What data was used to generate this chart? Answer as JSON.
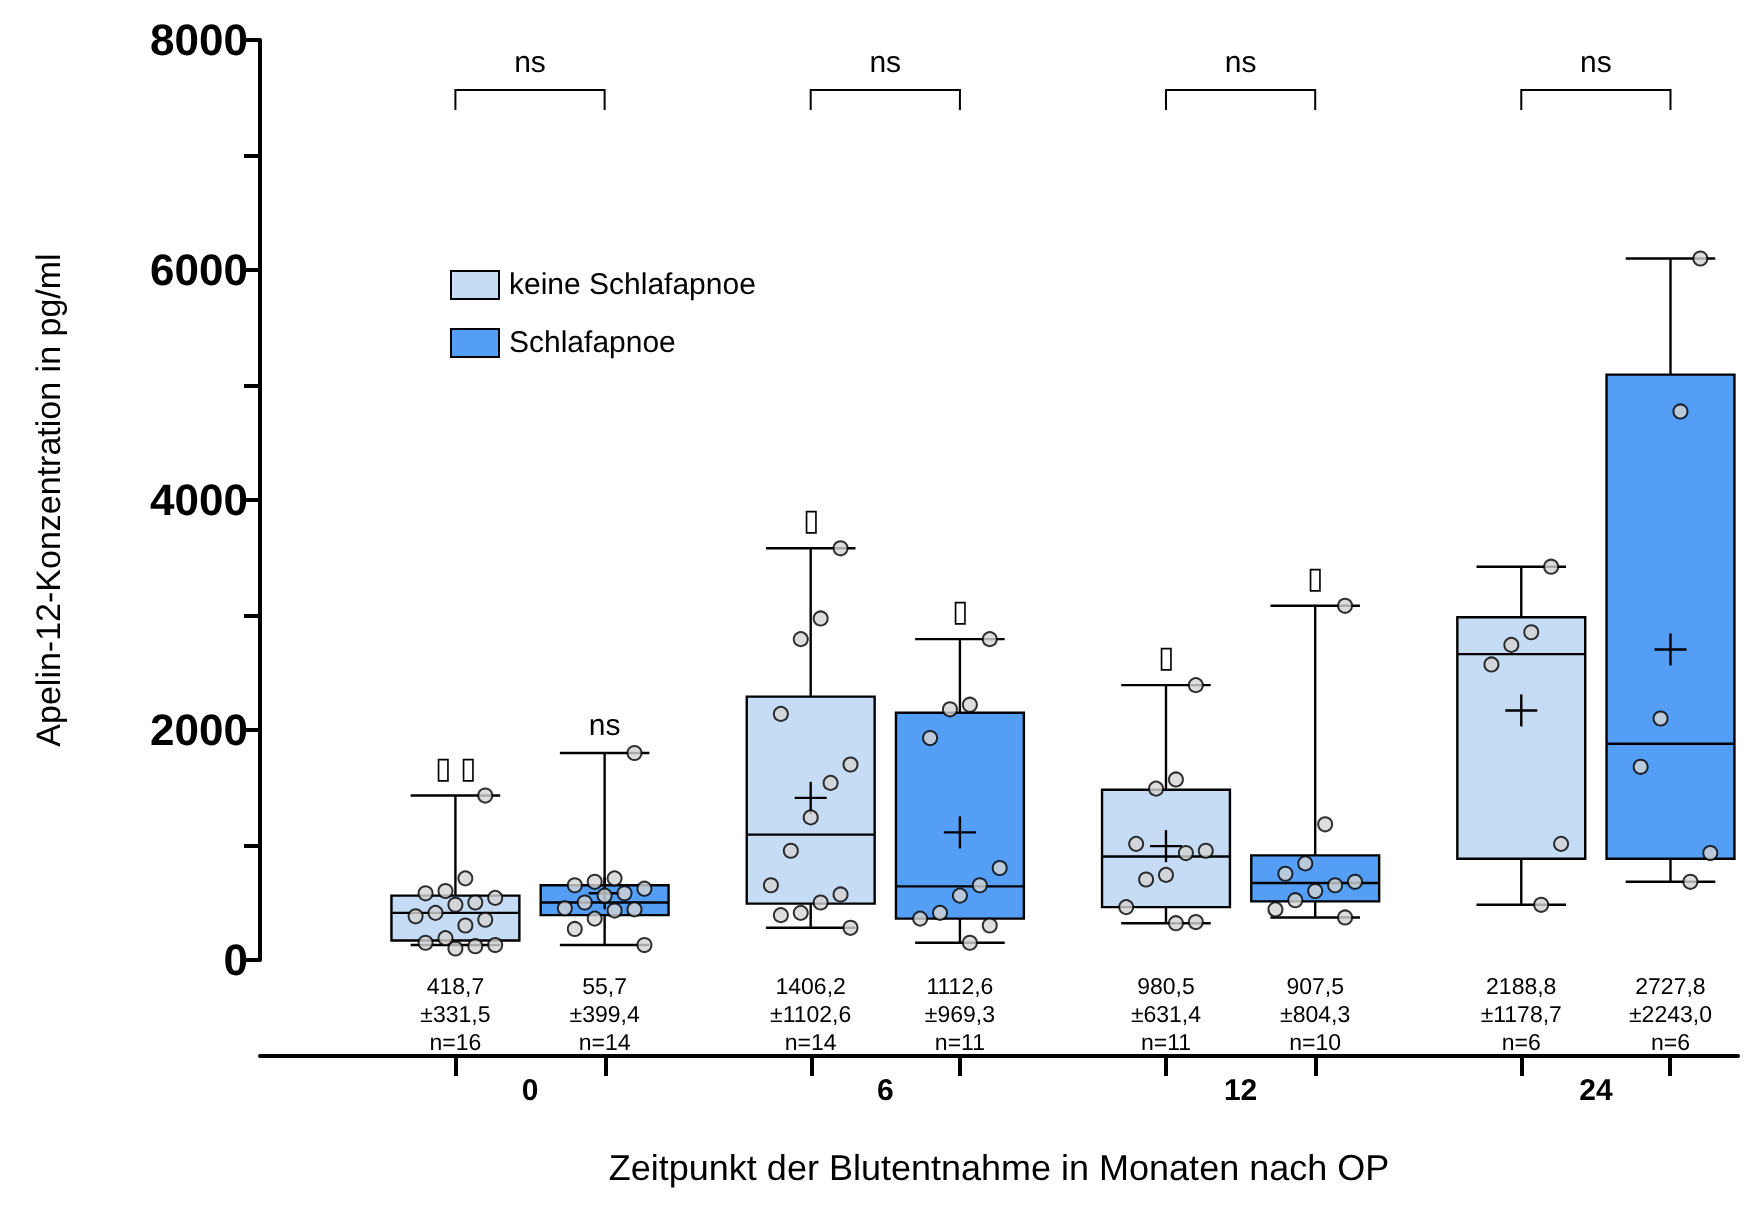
{
  "chart_data": {
    "type": "box",
    "xlabel": "Zeitpunkt der Blutentnahme in Monaten nach OP",
    "ylabel": "Apelin-12-Konzentration in pg/ml",
    "categories": [
      "0",
      "6",
      "12",
      "24"
    ],
    "ylim": [
      0,
      8000
    ],
    "yticks": [
      0,
      2000,
      4000,
      6000,
      8000
    ],
    "grid": false,
    "legend": "top left",
    "series": [
      {
        "name": "keine Schlafapnoe",
        "color": "#c6dcf5",
        "boxes": [
          {
            "low": 130,
            "q1": 170,
            "median": 410,
            "q3": 560,
            "high": 1430
          },
          {
            "low": 280,
            "q1": 490,
            "median": 1090,
            "q3": 2290,
            "high": 3580,
            "mean": 1410
          },
          {
            "low": 320,
            "q1": 460,
            "median": 900,
            "q3": 1480,
            "high": 2390,
            "mean": 990
          },
          {
            "low": 480,
            "q1": 880,
            "median": 2660,
            "q3": 2980,
            "high": 3420,
            "mean": 2170
          }
        ],
        "value_labels": [
          "418,7\n±331,5\nn=16",
          "1406,2\n±1102,6\nn=14",
          "980,5\n±631,4\nn=11",
          "2188,8\n±1178,7\nn=6"
        ]
      },
      {
        "name": "Schlafapnoe",
        "color": "#559ef5",
        "boxes": [
          {
            "low": 130,
            "q1": 390,
            "median": 500,
            "q3": 650,
            "high": 1800,
            "mean": 580
          },
          {
            "low": 150,
            "q1": 360,
            "median": 640,
            "q3": 2150,
            "high": 2790,
            "mean": 1110
          },
          {
            "low": 370,
            "q1": 510,
            "median": 670,
            "q3": 910,
            "high": 3080
          },
          {
            "low": 680,
            "q1": 880,
            "median": 1880,
            "q3": 5090,
            "high": 6100,
            "mean": 2700
          }
        ],
        "value_labels": [
          "55,7\n±399,4\nn=14",
          "1112,6\n±969,3\nn=11",
          "907,5\n±804,3\nn=10",
          "2727,8\n±2243,0\nn=6"
        ]
      },
      {
        "type": "scatter",
        "color": "#d4d4d4",
        "x": [
          "0",
          "0",
          "0",
          "0",
          "0",
          "0",
          "0",
          "0",
          "0",
          "0",
          "0",
          "0",
          "0",
          "0",
          "0",
          "0",
          "6",
          "6",
          "6",
          "6",
          "6",
          "6",
          "6",
          "6",
          "6",
          "6",
          "6",
          "6",
          "6",
          "6",
          "12",
          "12",
          "12",
          "12",
          "12",
          "12",
          "12",
          "12",
          "12",
          "12",
          "12",
          "24",
          "24",
          "24",
          "24",
          "24",
          "24"
        ],
        "values": [
          1430,
          710,
          600,
          580,
          540,
          500,
          480,
          410,
          380,
          350,
          300,
          190,
          150,
          130,
          120,
          100,
          3580,
          2970,
          2790,
          2140,
          1700,
          1540,
          1240,
          950,
          650,
          570,
          500,
          410,
          390,
          280,
          2390,
          1570,
          1490,
          1010,
          950,
          930,
          740,
          700,
          460,
          330,
          320,
          3420,
          2850,
          2740,
          2570,
          1010,
          480
        ]
      },
      {
        "type": "scatter",
        "color": "#d4d4d4",
        "x": [
          "0",
          "0",
          "0",
          "0",
          "0",
          "0",
          "0",
          "0",
          "0",
          "0",
          "0",
          "0",
          "0",
          "0",
          "6",
          "6",
          "6",
          "6",
          "6",
          "6",
          "6",
          "6",
          "6",
          "6",
          "6",
          "12",
          "12",
          "12",
          "12",
          "12",
          "12",
          "12",
          "12",
          "12",
          "12",
          "24",
          "24",
          "24",
          "24",
          "24",
          "24"
        ],
        "values": [
          1800,
          710,
          680,
          650,
          620,
          580,
          560,
          500,
          450,
          440,
          430,
          360,
          270,
          130,
          2790,
          2220,
          2180,
          1930,
          800,
          650,
          560,
          410,
          360,
          300,
          150,
          3080,
          1180,
          840,
          750,
          680,
          650,
          600,
          520,
          440,
          370,
          6100,
          4770,
          2100,
          1680,
          930,
          680
        ]
      }
    ],
    "marker": "circle",
    "annotations": [
      "ns",
      "ns",
      "ns",
      "ns",
      "▯ ▯",
      "ns",
      "▯",
      "▯",
      "▯",
      "▯"
    ]
  }
}
